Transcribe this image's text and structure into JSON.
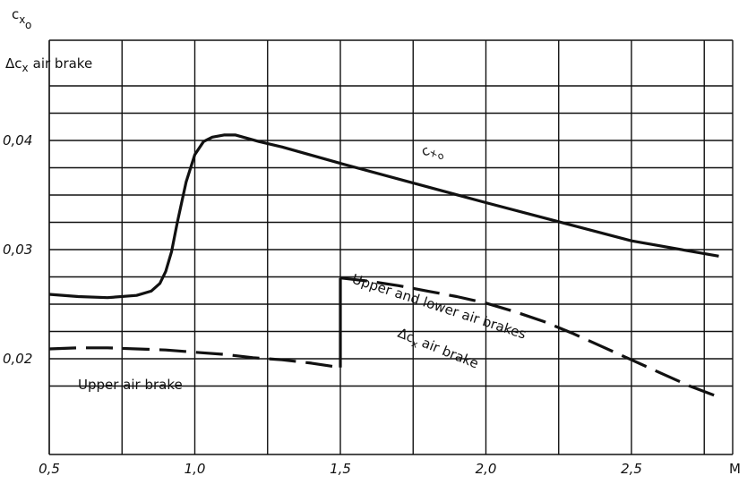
{
  "chart_data": {
    "type": "line",
    "y_axis_label": {
      "line1_main": "c",
      "line1_sub": "x",
      "line1_subsub": "o",
      "line2_main": "Δc",
      "line2_sub": "x",
      "line2_rest": "air brake"
    },
    "x_axis_label": "M",
    "x_ticks": [
      "0,5",
      "1,0",
      "1,5",
      "2,0",
      "2,5"
    ],
    "y_ticks": [
      "0,02",
      "0,03",
      "0,04"
    ],
    "xlim": [
      0.5,
      2.85
    ],
    "ylim": [
      0.0145,
      0.0455
    ],
    "grid": true,
    "series": [
      {
        "name": "cxo",
        "label_main": "c",
        "label_sub": "x",
        "label_subsub": "o",
        "style": "solid",
        "x": [
          0.5,
          0.6,
          0.7,
          0.8,
          0.85,
          0.88,
          0.9,
          0.92,
          0.94,
          0.97,
          1.0,
          1.03,
          1.06,
          1.1,
          1.14,
          1.18,
          1.22,
          1.3,
          1.5,
          2.0,
          2.5,
          2.8
        ],
        "y": [
          0.0259,
          0.0257,
          0.0256,
          0.0258,
          0.0262,
          0.0269,
          0.028,
          0.0298,
          0.0325,
          0.0362,
          0.0387,
          0.0399,
          0.0403,
          0.0405,
          0.0405,
          0.0402,
          0.0399,
          0.0394,
          0.0379,
          0.0343,
          0.0308,
          0.0294
        ]
      },
      {
        "name": "Upper air brake",
        "style": "dashed",
        "x": [
          0.5,
          0.6,
          0.7,
          0.8,
          0.9,
          1.0,
          1.1,
          1.2,
          1.3,
          1.4,
          1.5
        ],
        "y": [
          0.0209,
          0.021,
          0.021,
          0.0209,
          0.0208,
          0.0206,
          0.0204,
          0.0201,
          0.0199,
          0.0196,
          0.0192
        ]
      },
      {
        "name": "Upper and lower air brakes",
        "label2_main": "Δc",
        "label2_sub": "x",
        "label2_rest": "air brake",
        "style": "dashed",
        "x": [
          1.5,
          1.6,
          1.7,
          1.8,
          1.9,
          2.0,
          2.1,
          2.2,
          2.3,
          2.4,
          2.5,
          2.6,
          2.7,
          2.8
        ],
        "y": [
          0.0274,
          0.0271,
          0.0267,
          0.0262,
          0.0257,
          0.0251,
          0.0243,
          0.0234,
          0.0223,
          0.0211,
          0.0199,
          0.0187,
          0.0175,
          0.0165
        ]
      }
    ],
    "step": {
      "x": 1.5,
      "from": 0.0192,
      "to": 0.0274
    }
  }
}
